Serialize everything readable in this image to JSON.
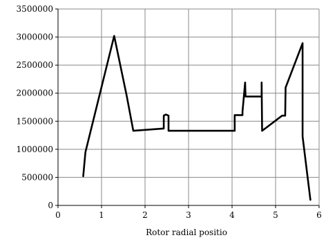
{
  "chart_data": {
    "type": "line",
    "title": "",
    "xlabel": "Rotor radial positio",
    "ylabel": "",
    "xlim": [
      0,
      6
    ],
    "ylim": [
      0,
      3500000
    ],
    "x_ticks": [
      0,
      1,
      2,
      3,
      4,
      5,
      6
    ],
    "y_ticks": [
      0,
      500000,
      1000000,
      1500000,
      2000000,
      2500000,
      3000000,
      3500000
    ],
    "x_tick_labels": [
      "0",
      "1",
      "2",
      "3",
      "4",
      "5",
      "6"
    ],
    "y_tick_labels": [
      "0",
      "500000",
      "1000000",
      "1500000",
      "2000000",
      "2500000",
      "3000000",
      "3500000"
    ],
    "grid": true,
    "legend": "none",
    "series": [
      {
        "color": "#000000",
        "x": [
          0.58,
          0.63,
          1.29,
          1.58,
          1.73,
          2.43,
          2.43,
          2.48,
          2.54,
          2.54,
          4.06,
          4.06,
          4.24,
          4.24,
          4.3,
          4.31,
          4.68,
          4.68,
          4.69,
          5.15,
          5.22,
          5.23,
          5.62,
          5.62,
          5.8
        ],
        "y": [
          520000,
          950000,
          3020000,
          1950000,
          1330000,
          1370000,
          1600000,
          1620000,
          1600000,
          1330000,
          1330000,
          1610000,
          1610000,
          1670000,
          2190000,
          1940000,
          1940000,
          2190000,
          1330000,
          1600000,
          1600000,
          2100000,
          2890000,
          1230000,
          100000
        ]
      }
    ]
  }
}
